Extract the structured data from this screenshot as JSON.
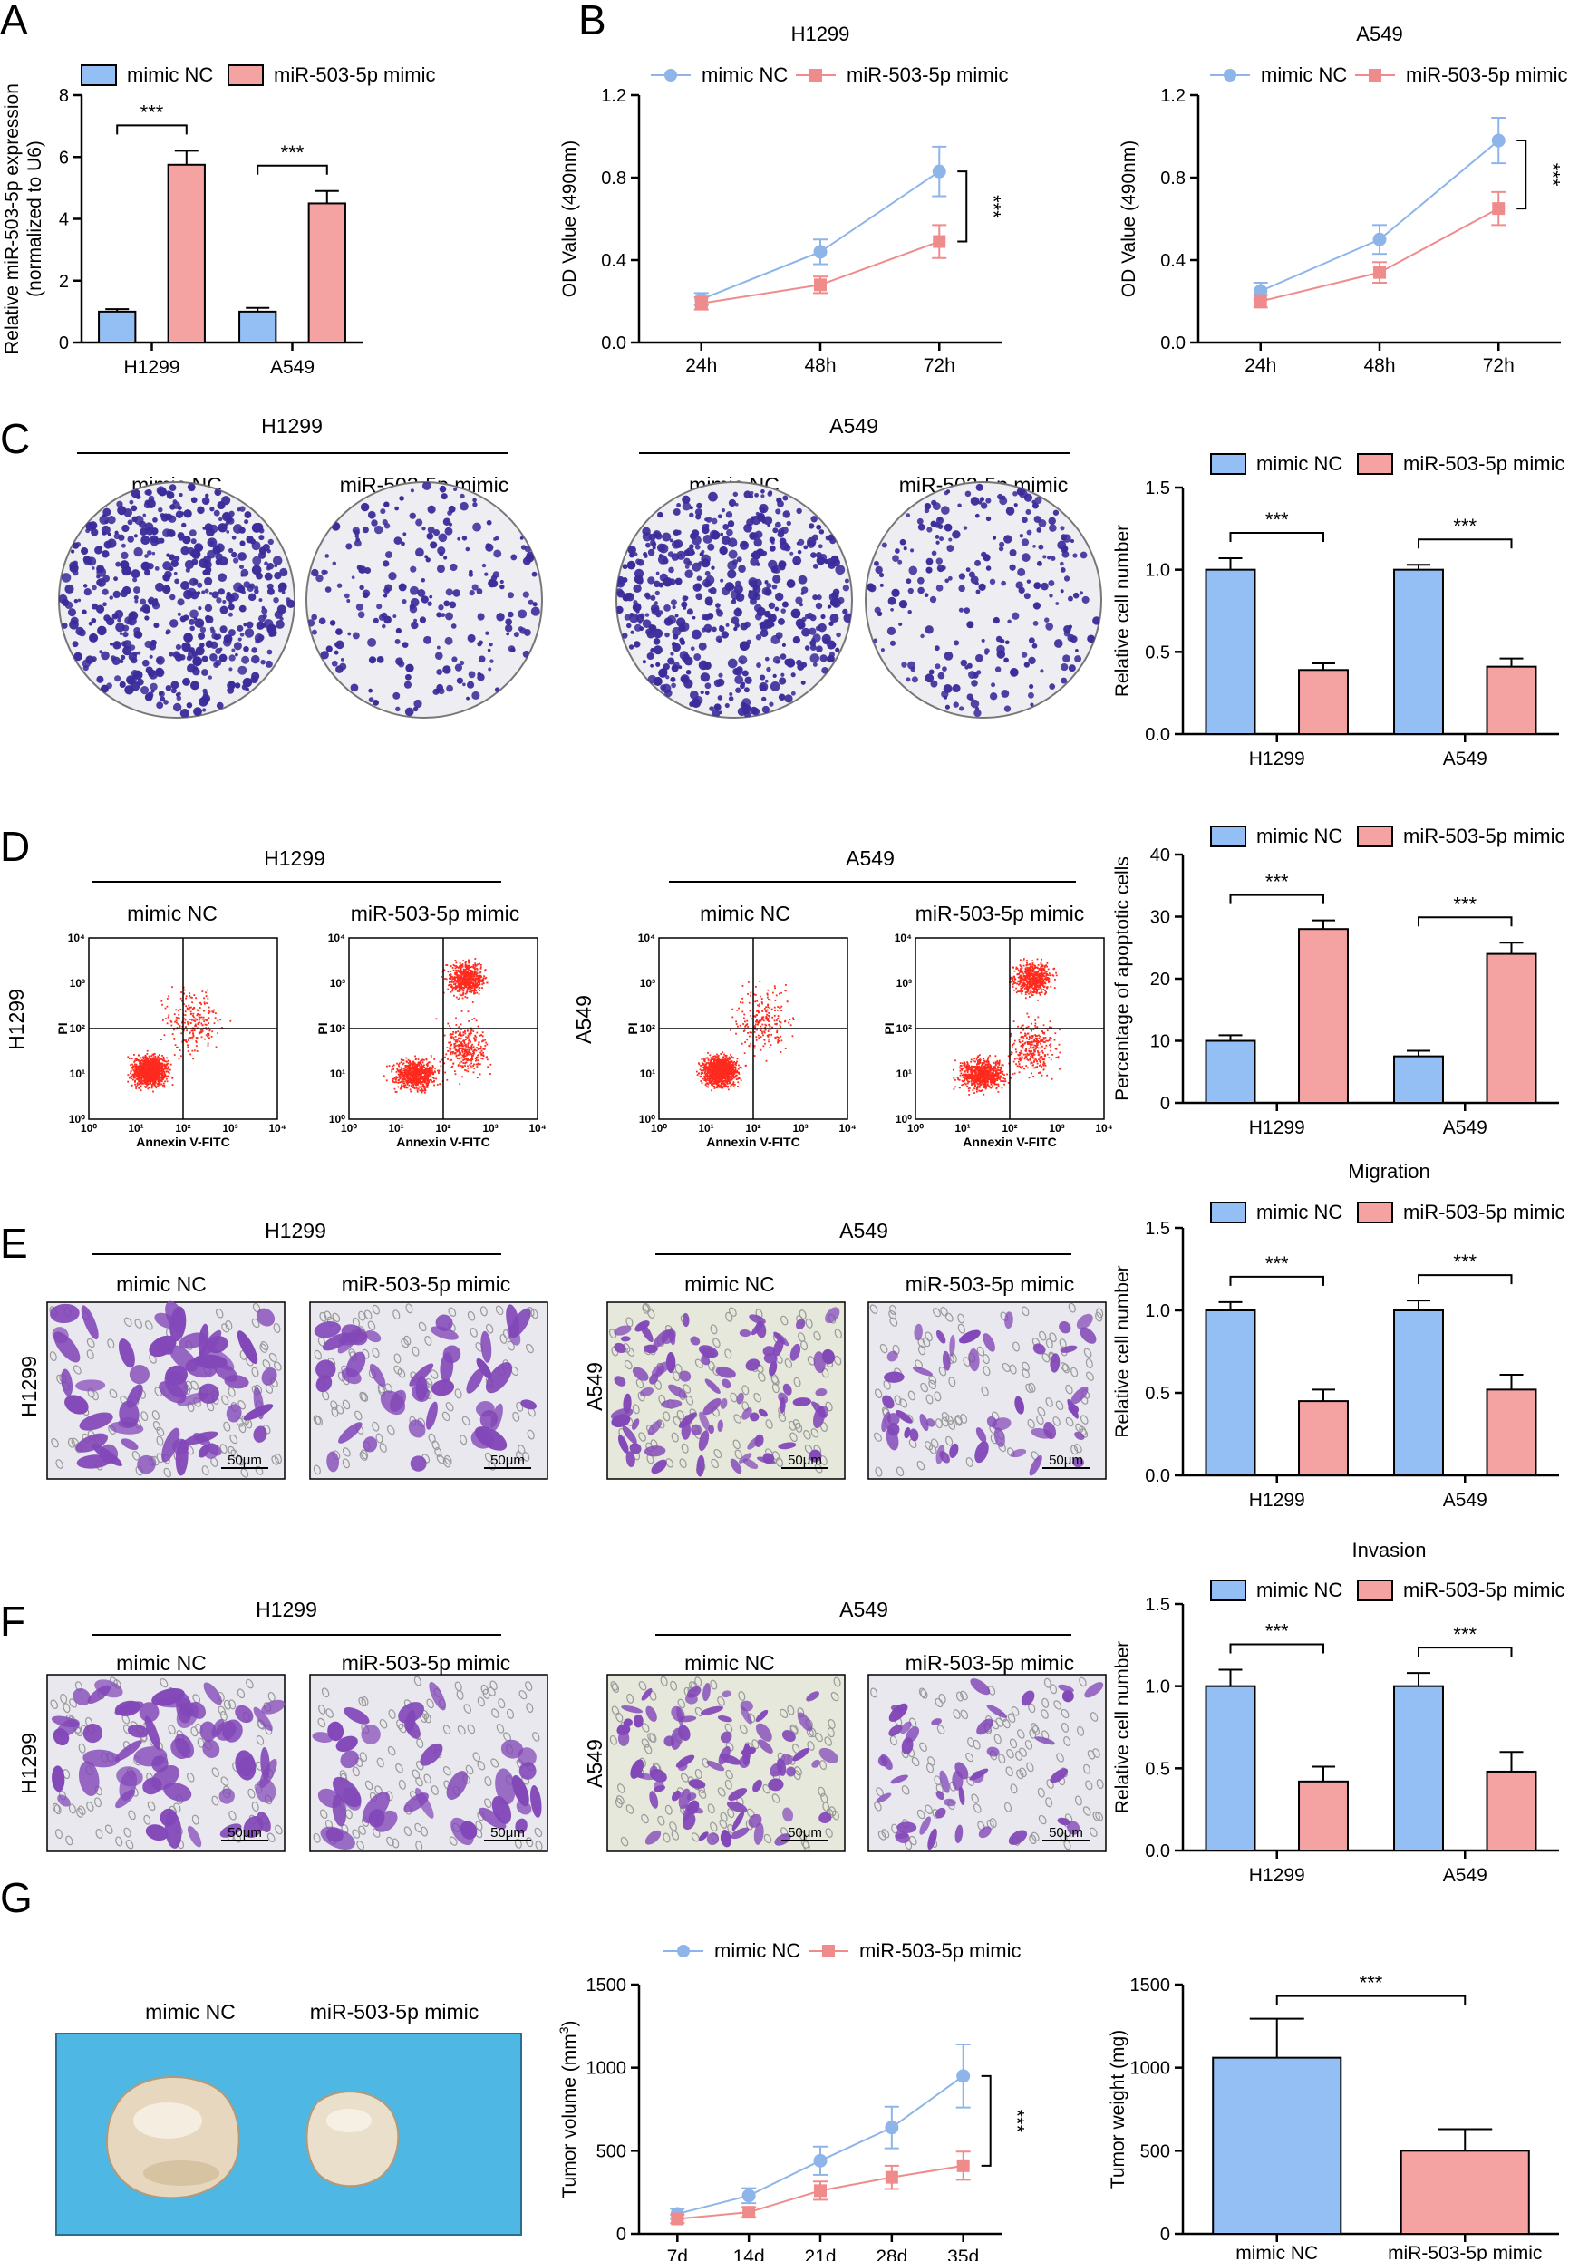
{
  "colors": {
    "nc_fill": "#93BFF5",
    "mimic_fill": "#F5A2A2",
    "nc_line": "#8DB5EA",
    "mimic_line": "#F08B8B",
    "stroke": "#000000",
    "colony": "#3A2C9A",
    "transwell": "#8247B8",
    "flow_dot": "#FF2A1E",
    "tumor_bg": "#4FB7E4",
    "tumor": "#E8DCC4"
  },
  "panels": {
    "A": "A",
    "B": "B",
    "C": "C",
    "D": "D",
    "E": "E",
    "F": "F",
    "G": "G"
  },
  "legend": {
    "nc": "mimic NC",
    "mimic": "miR-503-5p mimic"
  },
  "sig": "***",
  "images": {
    "C": {
      "group1": "H1299",
      "group2": "A549",
      "label_nc": "mimic NC",
      "label_mimic": "miR-503-5p mimic"
    },
    "D": {
      "group1": "H1299",
      "group2": "A549",
      "label_nc": "mimic NC",
      "label_mimic": "miR-503-5p mimic",
      "row1": "H1299",
      "row2": "A549",
      "ylabel": "PI",
      "xlabel": "Annexin V-FITC",
      "ticks": [
        "10⁰",
        "10¹",
        "10²",
        "10³",
        "10⁴"
      ]
    },
    "E": {
      "group1": "H1299",
      "group2": "A549",
      "label_nc": "mimic NC",
      "label_mimic": "miR-503-5p mimic",
      "row1": "H1299",
      "row2": "A549",
      "scale": "50μm"
    },
    "F": {
      "group1": "H1299",
      "group2": "A549",
      "label_nc": "mimic NC",
      "label_mimic": "miR-503-5p mimic",
      "row1": "H1299",
      "row2": "A549",
      "scale": "50μm"
    },
    "G": {
      "label_nc": "mimic NC",
      "label_mimic": "miR-503-5p mimic"
    }
  },
  "chart_data": [
    {
      "id": "A",
      "type": "bar",
      "categories": [
        "H1299",
        "A549"
      ],
      "series": [
        {
          "name": "mimic NC",
          "values": [
            1.0,
            1.0
          ],
          "errors": [
            0.08,
            0.12
          ]
        },
        {
          "name": "miR-503-5p mimic",
          "values": [
            5.75,
            4.5
          ],
          "errors": [
            0.45,
            0.4
          ]
        }
      ],
      "ylabel": "Relative miR-503-5p expression (normalized to U6)",
      "ylabel_lines": [
        "Relative miR-503-5p expression",
        "(normalized to U6)"
      ],
      "ylim": [
        0,
        8
      ],
      "yticks": [
        "0",
        "2",
        "4",
        "6",
        "8"
      ],
      "title": ""
    },
    {
      "id": "B1",
      "type": "line",
      "x": [
        "24h",
        "48h",
        "72h"
      ],
      "title": "H1299",
      "series": [
        {
          "name": "mimic NC",
          "values": [
            0.21,
            0.44,
            0.83
          ],
          "errors": [
            0.03,
            0.06,
            0.12
          ]
        },
        {
          "name": "miR-503-5p mimic",
          "values": [
            0.19,
            0.28,
            0.49
          ],
          "errors": [
            0.03,
            0.04,
            0.08
          ]
        }
      ],
      "ylabel": "OD Value (490nm)",
      "ylim": [
        0,
        1.2
      ],
      "yticks": [
        "0.0",
        "0.4",
        "0.8",
        "1.2"
      ]
    },
    {
      "id": "B2",
      "type": "line",
      "x": [
        "24h",
        "48h",
        "72h"
      ],
      "title": "A549",
      "series": [
        {
          "name": "mimic NC",
          "values": [
            0.25,
            0.5,
            0.98
          ],
          "errors": [
            0.04,
            0.07,
            0.11
          ]
        },
        {
          "name": "miR-503-5p mimic",
          "values": [
            0.2,
            0.34,
            0.65
          ],
          "errors": [
            0.03,
            0.05,
            0.08
          ]
        }
      ],
      "ylabel": "OD Value (490nm)",
      "ylim": [
        0,
        1.2
      ],
      "yticks": [
        "0.0",
        "0.4",
        "0.8",
        "1.2"
      ]
    },
    {
      "id": "C",
      "type": "bar",
      "categories": [
        "H1299",
        "A549"
      ],
      "series": [
        {
          "name": "mimic NC",
          "values": [
            1.0,
            1.0
          ],
          "errors": [
            0.07,
            0.03
          ]
        },
        {
          "name": "miR-503-5p mimic",
          "values": [
            0.39,
            0.41
          ],
          "errors": [
            0.04,
            0.05
          ]
        }
      ],
      "ylabel": "Relative cell number",
      "ylim": [
        0,
        1.5
      ],
      "yticks": [
        "0.0",
        "0.5",
        "1.0",
        "1.5"
      ],
      "title": ""
    },
    {
      "id": "D",
      "type": "bar",
      "categories": [
        "H1299",
        "A549"
      ],
      "series": [
        {
          "name": "mimic NC",
          "values": [
            10,
            7.5
          ],
          "errors": [
            0.9,
            0.9
          ]
        },
        {
          "name": "miR-503-5p mimic",
          "values": [
            28,
            24
          ],
          "errors": [
            1.4,
            1.8
          ]
        }
      ],
      "ylabel": "Percentage of apoptotic cells",
      "ylim": [
        0,
        40
      ],
      "yticks": [
        "0",
        "10",
        "20",
        "30",
        "40"
      ],
      "title": ""
    },
    {
      "id": "E",
      "type": "bar",
      "categories": [
        "H1299",
        "A549"
      ],
      "title": "Migration",
      "series": [
        {
          "name": "mimic NC",
          "values": [
            1.0,
            1.0
          ],
          "errors": [
            0.05,
            0.06
          ]
        },
        {
          "name": "miR-503-5p mimic",
          "values": [
            0.45,
            0.52
          ],
          "errors": [
            0.07,
            0.09
          ]
        }
      ],
      "ylabel": "Relative cell number",
      "ylim": [
        0,
        1.5
      ],
      "yticks": [
        "0.0",
        "0.5",
        "1.0",
        "1.5"
      ]
    },
    {
      "id": "F",
      "type": "bar",
      "categories": [
        "H1299",
        "A549"
      ],
      "title": "Invasion",
      "series": [
        {
          "name": "mimic NC",
          "values": [
            1.0,
            1.0
          ],
          "errors": [
            0.1,
            0.08
          ]
        },
        {
          "name": "miR-503-5p mimic",
          "values": [
            0.42,
            0.48
          ],
          "errors": [
            0.09,
            0.12
          ]
        }
      ],
      "ylabel": "Relative cell number",
      "ylim": [
        0,
        1.5
      ],
      "yticks": [
        "0.0",
        "0.5",
        "1.0",
        "1.5"
      ]
    },
    {
      "id": "G1",
      "type": "line",
      "x": [
        "7d",
        "14d",
        "21d",
        "28d",
        "35d"
      ],
      "title": "",
      "series": [
        {
          "name": "mimic NC",
          "values": [
            120,
            230,
            440,
            640,
            950
          ],
          "errors": [
            30,
            45,
            85,
            125,
            190
          ]
        },
        {
          "name": "miR-503-5p mimic",
          "values": [
            90,
            130,
            260,
            340,
            410
          ],
          "errors": [
            25,
            30,
            55,
            70,
            85
          ]
        }
      ],
      "ylabel": "Tumor volume (mm3)",
      "ylabel_text": "Tumor volume (mm",
      "ylabel_sup": "3",
      "ylabel_end": ")",
      "ylim": [
        0,
        1500
      ],
      "yticks": [
        "0",
        "500",
        "1000",
        "1500"
      ]
    },
    {
      "id": "G2",
      "type": "bar",
      "categories": [
        "mimic NC",
        "miR-503-5p mimic"
      ],
      "title": "",
      "series": [
        {
          "name": "",
          "values": [
            1060,
            500
          ],
          "errors": [
            235,
            130
          ]
        }
      ],
      "ylabel": "Tumor weight (mg)",
      "ylim": [
        0,
        1500
      ],
      "yticks": [
        "0",
        "500",
        "1000",
        "1500"
      ]
    }
  ]
}
